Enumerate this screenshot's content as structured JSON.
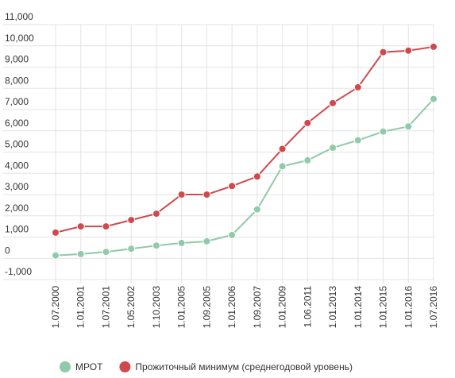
{
  "chart_data": {
    "type": "line",
    "categories": [
      "1.07.2000",
      "1.01.2001",
      "1.07.2001",
      "1.05.2002",
      "1.10.2003",
      "1.01.2005",
      "1.09.2005",
      "1.01.2006",
      "1.09.2007",
      "1.01.2009",
      "1.06.2011",
      "1.01.2013",
      "1.01.2014",
      "1.01.2015",
      "1.01.2016",
      "1.07.2016"
    ],
    "series": [
      {
        "name": "МРОТ",
        "color": "#8fcaa9",
        "values": [
          132,
          200,
          300,
          450,
          600,
          720,
          800,
          1100,
          2300,
          4330,
          4611,
          5205,
          5554,
          5965,
          6204,
          7500
        ]
      },
      {
        "name": "Прожиточный минимум (среднегодовой уровень)",
        "color": "#d0494c",
        "values": [
          1210,
          1500,
          1500,
          1800,
          2100,
          3000,
          3000,
          3400,
          3850,
          5150,
          6369,
          7306,
          8050,
          9701,
          9776,
          9956
        ]
      }
    ],
    "ylim": [
      -1000,
      11000
    ],
    "yticks": [
      {
        "value": -1000,
        "label": "-1,000"
      },
      0,
      {
        "value": 1000,
        "label": "1,000"
      },
      {
        "value": 2000,
        "label": "2,000"
      },
      {
        "value": 3000,
        "label": "3,000"
      },
      {
        "value": 4000,
        "label": "4,000"
      },
      {
        "value": 5000,
        "label": "5,000"
      },
      {
        "value": 6000,
        "label": "6,000"
      },
      {
        "value": 7000,
        "label": "7,000"
      },
      {
        "value": 8000,
        "label": "8,000"
      },
      {
        "value": 9000,
        "label": "9,000"
      },
      {
        "value": 10000,
        "label": "10,000"
      },
      {
        "value": 11000,
        "label": "11,000"
      }
    ],
    "grid": true,
    "legend": "bottom"
  }
}
